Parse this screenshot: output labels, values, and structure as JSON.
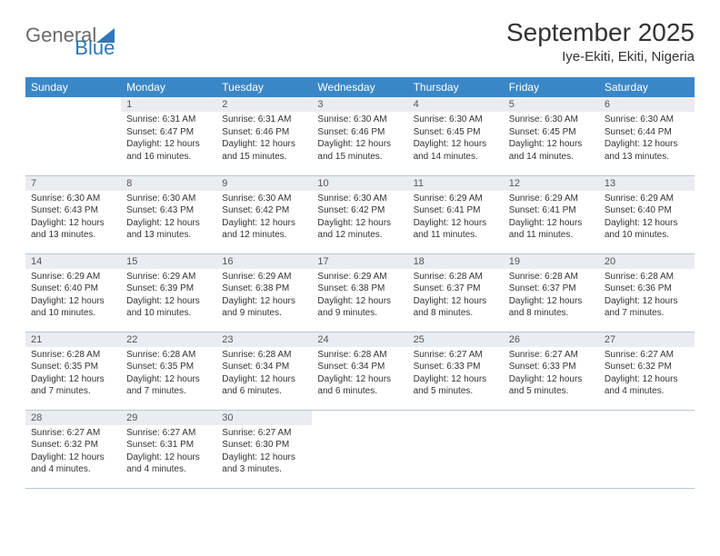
{
  "brand": {
    "word1": "General",
    "word2": "Blue"
  },
  "title": "September 2025",
  "location": "Iye-Ekiti, Ekiti, Nigeria",
  "colors": {
    "header_bg": "#3a87c8",
    "header_text": "#ffffff",
    "daynum_bg": "#e9edf1",
    "border": "#b8c5d0",
    "brand_gray": "#6a6a6a",
    "brand_blue": "#2e77b8"
  },
  "dayNames": [
    "Sunday",
    "Monday",
    "Tuesday",
    "Wednesday",
    "Thursday",
    "Friday",
    "Saturday"
  ],
  "weeks": [
    [
      null,
      {
        "n": "1",
        "sr": "6:31 AM",
        "ss": "6:47 PM",
        "dl": "12 hours and 16 minutes."
      },
      {
        "n": "2",
        "sr": "6:31 AM",
        "ss": "6:46 PM",
        "dl": "12 hours and 15 minutes."
      },
      {
        "n": "3",
        "sr": "6:30 AM",
        "ss": "6:46 PM",
        "dl": "12 hours and 15 minutes."
      },
      {
        "n": "4",
        "sr": "6:30 AM",
        "ss": "6:45 PM",
        "dl": "12 hours and 14 minutes."
      },
      {
        "n": "5",
        "sr": "6:30 AM",
        "ss": "6:45 PM",
        "dl": "12 hours and 14 minutes."
      },
      {
        "n": "6",
        "sr": "6:30 AM",
        "ss": "6:44 PM",
        "dl": "12 hours and 13 minutes."
      }
    ],
    [
      {
        "n": "7",
        "sr": "6:30 AM",
        "ss": "6:43 PM",
        "dl": "12 hours and 13 minutes."
      },
      {
        "n": "8",
        "sr": "6:30 AM",
        "ss": "6:43 PM",
        "dl": "12 hours and 13 minutes."
      },
      {
        "n": "9",
        "sr": "6:30 AM",
        "ss": "6:42 PM",
        "dl": "12 hours and 12 minutes."
      },
      {
        "n": "10",
        "sr": "6:30 AM",
        "ss": "6:42 PM",
        "dl": "12 hours and 12 minutes."
      },
      {
        "n": "11",
        "sr": "6:29 AM",
        "ss": "6:41 PM",
        "dl": "12 hours and 11 minutes."
      },
      {
        "n": "12",
        "sr": "6:29 AM",
        "ss": "6:41 PM",
        "dl": "12 hours and 11 minutes."
      },
      {
        "n": "13",
        "sr": "6:29 AM",
        "ss": "6:40 PM",
        "dl": "12 hours and 10 minutes."
      }
    ],
    [
      {
        "n": "14",
        "sr": "6:29 AM",
        "ss": "6:40 PM",
        "dl": "12 hours and 10 minutes."
      },
      {
        "n": "15",
        "sr": "6:29 AM",
        "ss": "6:39 PM",
        "dl": "12 hours and 10 minutes."
      },
      {
        "n": "16",
        "sr": "6:29 AM",
        "ss": "6:38 PM",
        "dl": "12 hours and 9 minutes."
      },
      {
        "n": "17",
        "sr": "6:29 AM",
        "ss": "6:38 PM",
        "dl": "12 hours and 9 minutes."
      },
      {
        "n": "18",
        "sr": "6:28 AM",
        "ss": "6:37 PM",
        "dl": "12 hours and 8 minutes."
      },
      {
        "n": "19",
        "sr": "6:28 AM",
        "ss": "6:37 PM",
        "dl": "12 hours and 8 minutes."
      },
      {
        "n": "20",
        "sr": "6:28 AM",
        "ss": "6:36 PM",
        "dl": "12 hours and 7 minutes."
      }
    ],
    [
      {
        "n": "21",
        "sr": "6:28 AM",
        "ss": "6:35 PM",
        "dl": "12 hours and 7 minutes."
      },
      {
        "n": "22",
        "sr": "6:28 AM",
        "ss": "6:35 PM",
        "dl": "12 hours and 7 minutes."
      },
      {
        "n": "23",
        "sr": "6:28 AM",
        "ss": "6:34 PM",
        "dl": "12 hours and 6 minutes."
      },
      {
        "n": "24",
        "sr": "6:28 AM",
        "ss": "6:34 PM",
        "dl": "12 hours and 6 minutes."
      },
      {
        "n": "25",
        "sr": "6:27 AM",
        "ss": "6:33 PM",
        "dl": "12 hours and 5 minutes."
      },
      {
        "n": "26",
        "sr": "6:27 AM",
        "ss": "6:33 PM",
        "dl": "12 hours and 5 minutes."
      },
      {
        "n": "27",
        "sr": "6:27 AM",
        "ss": "6:32 PM",
        "dl": "12 hours and 4 minutes."
      }
    ],
    [
      {
        "n": "28",
        "sr": "6:27 AM",
        "ss": "6:32 PM",
        "dl": "12 hours and 4 minutes."
      },
      {
        "n": "29",
        "sr": "6:27 AM",
        "ss": "6:31 PM",
        "dl": "12 hours and 4 minutes."
      },
      {
        "n": "30",
        "sr": "6:27 AM",
        "ss": "6:30 PM",
        "dl": "12 hours and 3 minutes."
      },
      null,
      null,
      null,
      null
    ]
  ],
  "labels": {
    "sunrise": "Sunrise:",
    "sunset": "Sunset:",
    "daylight": "Daylight:"
  }
}
